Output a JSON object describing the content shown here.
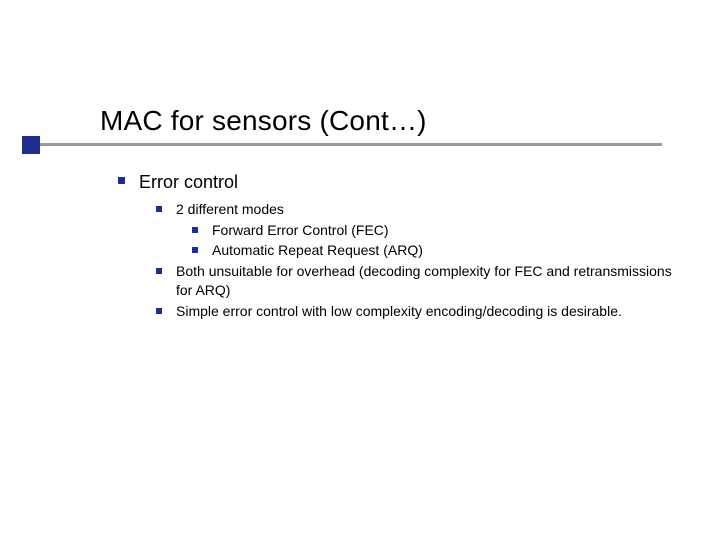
{
  "slide": {
    "title": "MAC for sensors (Cont…)",
    "title_fontsize": 28,
    "title_color": "#000000",
    "accent_color": "#1f2f8f",
    "underline_color": "#9a9a9a",
    "background_color": "#ffffff",
    "body_fontsize_lvl1": 18,
    "body_fontsize_lvl2": 14,
    "body_fontsize_lvl3": 14,
    "bullets": {
      "lvl1": {
        "text": "Error control",
        "children": [
          {
            "text": "2 different modes",
            "children": [
              {
                "text": "Forward Error Control (FEC)"
              },
              {
                "text": "Automatic Repeat Request (ARQ)"
              }
            ]
          },
          {
            "text": "Both unsuitable for overhead (decoding complexity for FEC and retransmissions for ARQ)"
          },
          {
            "text": "Simple error control with low complexity encoding/decoding is desirable."
          }
        ]
      }
    }
  }
}
